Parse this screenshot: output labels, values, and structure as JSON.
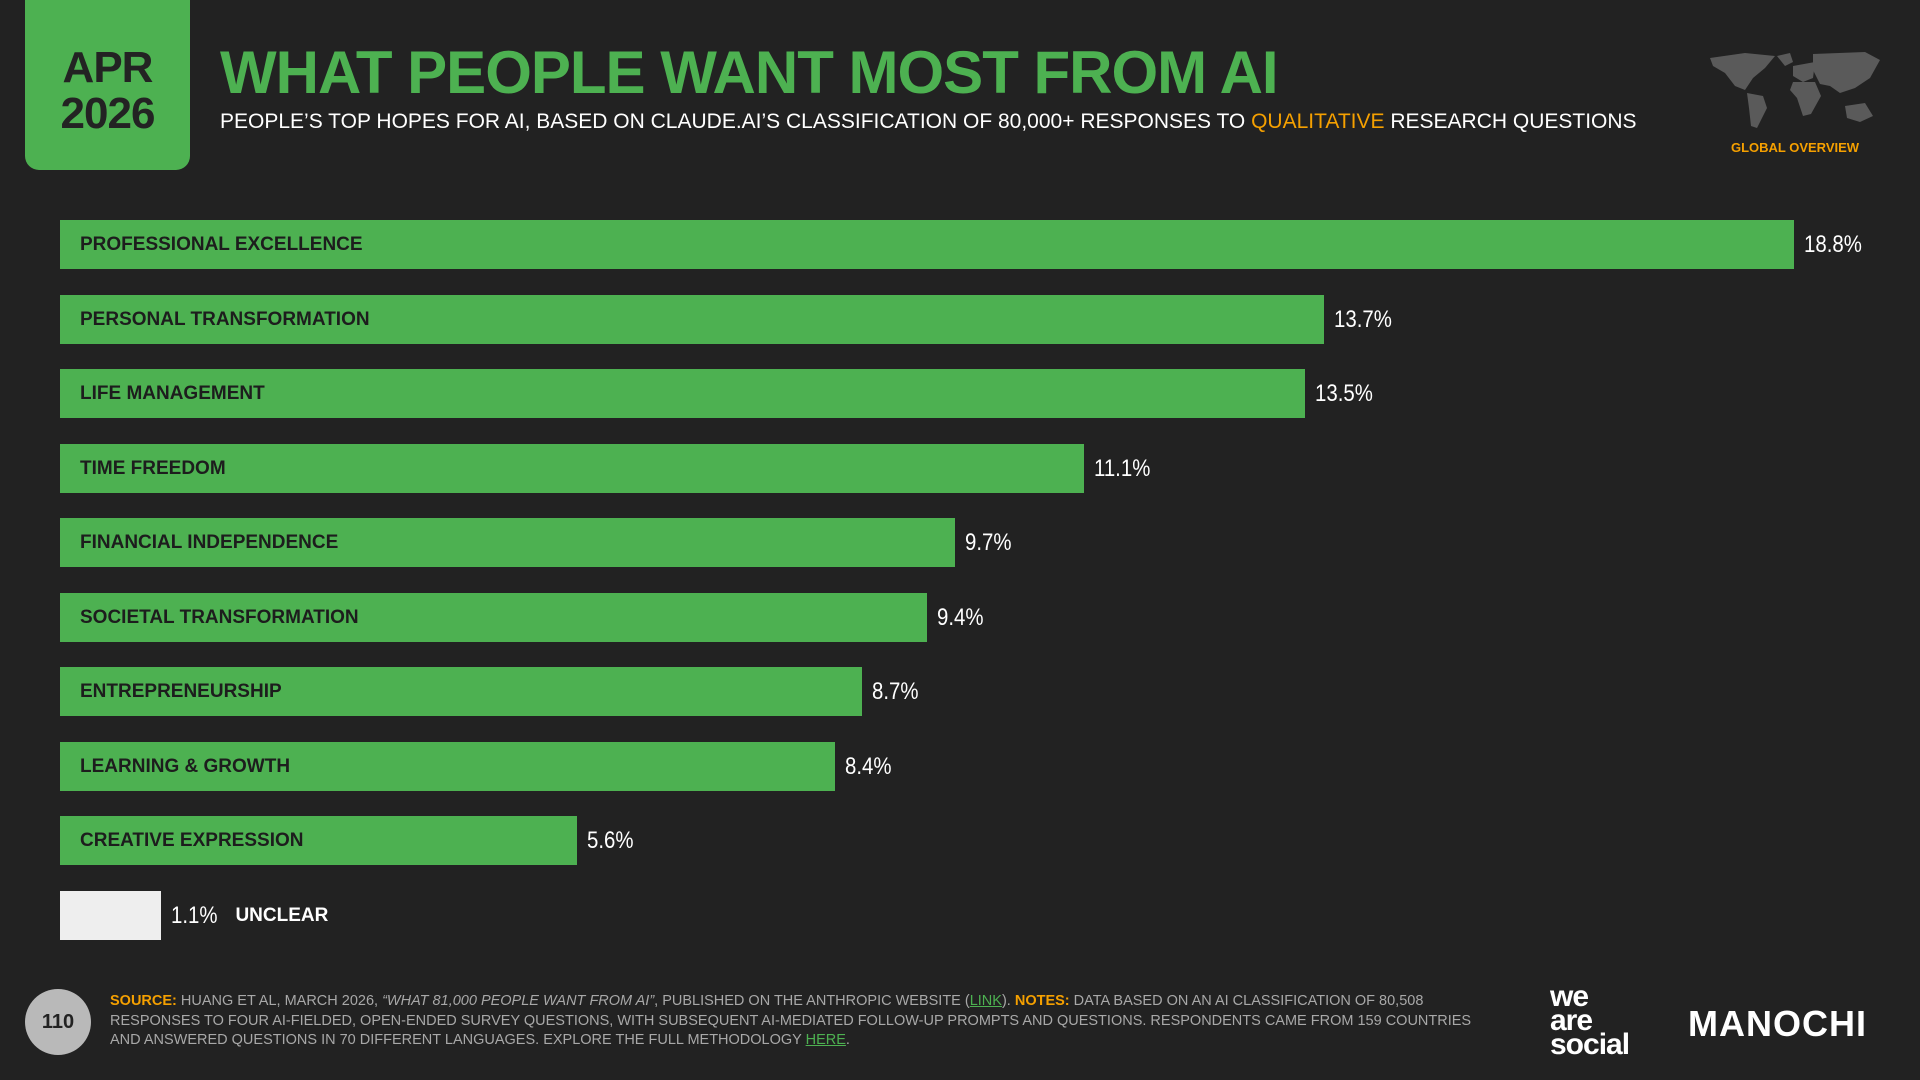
{
  "date": {
    "month": "APR",
    "year": "2026"
  },
  "header": {
    "title": "WHAT PEOPLE WANT MOST FROM AI",
    "subtitle_pre": "PEOPLE’S TOP HOPES FOR AI, BASED ON CLAUDE.AI’S CLASSIFICATION OF 80,000+ RESPONSES TO ",
    "subtitle_hl": "QUALITATIVE",
    "subtitle_post": " RESEARCH QUESTIONS",
    "region": "GLOBAL OVERVIEW"
  },
  "chart_data": {
    "type": "bar",
    "orientation": "horizontal",
    "unit": "%",
    "categories": [
      "PROFESSIONAL EXCELLENCE",
      "PERSONAL TRANSFORMATION",
      "LIFE MANAGEMENT",
      "TIME FREEDOM",
      "FINANCIAL INDEPENDENCE",
      "SOCIETAL TRANSFORMATION",
      "ENTREPRENEURSHIP",
      "LEARNING & GROWTH",
      "CREATIVE EXPRESSION",
      "UNCLEAR"
    ],
    "values": [
      18.8,
      13.7,
      13.5,
      11.1,
      9.7,
      9.4,
      8.7,
      8.4,
      5.6,
      1.1
    ],
    "labels": [
      "18.8%",
      "13.7%",
      "13.5%",
      "11.1%",
      "9.7%",
      "9.4%",
      "8.7%",
      "8.4%",
      "5.6%",
      "1.1%"
    ],
    "colors": [
      "#4db151",
      "#4db151",
      "#4db151",
      "#4db151",
      "#4db151",
      "#4db151",
      "#4db151",
      "#4db151",
      "#4db151",
      "#eeeeee"
    ]
  },
  "footer": {
    "page": "110",
    "source_label": "SOURCE:",
    "source_text": " HUANG ET AL, MARCH 2026, ",
    "source_title": "“WHAT 81,000 PEOPLE WANT FROM AI”",
    "source_text2": ", PUBLISHED ON THE ANTHROPIC WEBSITE (",
    "link": "LINK",
    "source_text3": "). ",
    "notes_label": "NOTES:",
    "notes_text": " DATA BASED ON AN AI CLASSIFICATION OF 80,508 RESPONSES TO FOUR AI-FIELDED, OPEN-ENDED SURVEY QUESTIONS, WITH SUBSEQUENT AI-MEDIATED FOLLOW-UP PROMPTS AND QUESTIONS. RESPONDENTS CAME FROM 159 COUNTRIES AND ANSWERED QUESTIONS IN 70 DIFFERENT LANGUAGES. EXPLORE THE FULL METHODOLOGY ",
    "here": "HERE",
    "end": "."
  },
  "logos": {
    "was": [
      "we",
      "are",
      "social"
    ],
    "partner": "MANOCHI"
  }
}
